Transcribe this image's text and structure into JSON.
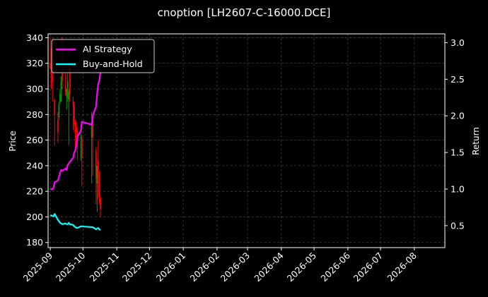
{
  "chart_data": {
    "type": "line",
    "title": "cnoption [LH2607-C-16000.DCE]",
    "ylabel": "Price",
    "y2label": "Return",
    "ylim": [
      176,
      343
    ],
    "y2lim": [
      0.2,
      3.12
    ],
    "yticks": [
      180,
      200,
      220,
      240,
      260,
      280,
      300,
      320,
      340
    ],
    "y2ticks": [
      "0.5",
      "1.0",
      "1.5",
      "2.0",
      "2.5",
      "3.0"
    ],
    "y2tick_values": [
      0.5,
      1.0,
      1.5,
      2.0,
      2.5,
      3.0
    ],
    "xlim": [
      "2025-08-30",
      "2026-08-29"
    ],
    "xticks": [
      "2025-09",
      "2025-10",
      "2025-11",
      "2025-12",
      "2026-01",
      "2026-02",
      "2026-03",
      "2026-04",
      "2026-05",
      "2026-06",
      "2026-07",
      "2026-08"
    ],
    "xtick_dates": [
      "2025-09-01",
      "2025-10-01",
      "2025-11-01",
      "2025-12-01",
      "2026-01-01",
      "2026-02-01",
      "2026-03-01",
      "2026-04-01",
      "2026-05-01",
      "2026-06-01",
      "2026-07-01",
      "2026-08-01"
    ],
    "grid": true,
    "legend_position": "top-left",
    "colors": {
      "background": "#000000",
      "up": "#00a000",
      "down": "#ff0000",
      "strategy": "#ff00ff",
      "buyhold": "#00ffff",
      "grid": "#555555"
    },
    "series": [
      {
        "name": "AI Strategy",
        "axis": "right",
        "color": "#ff00ff",
        "x": [
          "2025-09-01",
          "2025-09-02",
          "2025-09-03",
          "2025-09-04",
          "2025-09-05",
          "2025-09-08",
          "2025-09-09",
          "2025-09-10",
          "2025-09-11",
          "2025-09-12",
          "2025-09-15",
          "2025-09-16",
          "2025-09-17",
          "2025-09-18",
          "2025-09-19",
          "2025-09-22",
          "2025-09-23",
          "2025-09-24",
          "2025-09-25",
          "2025-09-26",
          "2025-09-29",
          "2025-09-30",
          "2025-10-09",
          "2025-10-10",
          "2025-10-13",
          "2025-10-14",
          "2025-10-15",
          "2025-10-16",
          "2025-10-17"
        ],
        "values": [
          1.0,
          1.0,
          1.0,
          1.02,
          1.09,
          1.12,
          1.17,
          1.22,
          1.26,
          1.25,
          1.28,
          1.26,
          1.33,
          1.35,
          1.37,
          1.43,
          1.5,
          1.53,
          1.6,
          1.72,
          1.79,
          1.92,
          1.88,
          2.0,
          2.13,
          2.3,
          2.44,
          2.48,
          2.6
        ]
      },
      {
        "name": "Buy-and-Hold",
        "axis": "right",
        "color": "#00ffff",
        "x": [
          "2025-09-01",
          "2025-09-02",
          "2025-09-03",
          "2025-09-04",
          "2025-09-05",
          "2025-09-08",
          "2025-09-09",
          "2025-09-10",
          "2025-09-11",
          "2025-09-12",
          "2025-09-15",
          "2025-09-16",
          "2025-09-17",
          "2025-09-18",
          "2025-09-19",
          "2025-09-22",
          "2025-09-23",
          "2025-09-24",
          "2025-09-25",
          "2025-09-26",
          "2025-09-29",
          "2025-09-30",
          "2025-10-09",
          "2025-10-10",
          "2025-10-13",
          "2025-10-14",
          "2025-10-15",
          "2025-10-16",
          "2025-10-17"
        ],
        "values": [
          0.64,
          0.64,
          0.63,
          0.63,
          0.66,
          0.58,
          0.56,
          0.54,
          0.53,
          0.52,
          0.53,
          0.52,
          0.52,
          0.54,
          0.52,
          0.51,
          0.49,
          0.48,
          0.47,
          0.47,
          0.49,
          0.49,
          0.48,
          0.48,
          0.45,
          0.46,
          0.47,
          0.45,
          0.44
        ]
      }
    ],
    "candles": {
      "x": [
        "2025-09-01",
        "2025-09-02",
        "2025-09-03",
        "2025-09-04",
        "2025-09-05",
        "2025-09-08",
        "2025-09-09",
        "2025-09-10",
        "2025-09-11",
        "2025-09-12",
        "2025-09-15",
        "2025-09-16",
        "2025-09-17",
        "2025-09-18",
        "2025-09-19",
        "2025-09-22",
        "2025-09-23",
        "2025-09-24",
        "2025-09-25",
        "2025-09-26",
        "2025-09-29",
        "2025-09-30",
        "2025-10-09",
        "2025-10-10",
        "2025-10-13",
        "2025-10-14",
        "2025-10-15",
        "2025-10-16",
        "2025-10-17"
      ],
      "open": [
        320,
        316,
        310,
        318,
        292,
        276,
        278,
        290,
        300,
        312,
        302,
        294,
        300,
        292,
        318,
        290,
        288,
        274,
        270,
        266,
        262,
        262,
        262,
        280,
        252,
        226,
        244,
        234,
        215
      ],
      "high": [
        340,
        332,
        340,
        324,
        292,
        282,
        290,
        300,
        310,
        340,
        312,
        300,
        312,
        300,
        320,
        294,
        290,
        276,
        274,
        270,
        266,
        264,
        282,
        280,
        255,
        230,
        260,
        236,
        216
      ],
      "low": [
        316,
        300,
        290,
        312,
        256,
        258,
        276,
        288,
        290,
        300,
        295,
        284,
        290,
        256,
        290,
        268,
        266,
        252,
        256,
        244,
        244,
        224,
        226,
        232,
        210,
        204,
        214,
        210,
        200
      ],
      "close": [
        316,
        310,
        306,
        322,
        280,
        266,
        288,
        296,
        306,
        306,
        298,
        300,
        306,
        298,
        296,
        288,
        272,
        270,
        266,
        262,
        262,
        246,
        274,
        262,
        230,
        240,
        234,
        216,
        206
      ]
    }
  }
}
